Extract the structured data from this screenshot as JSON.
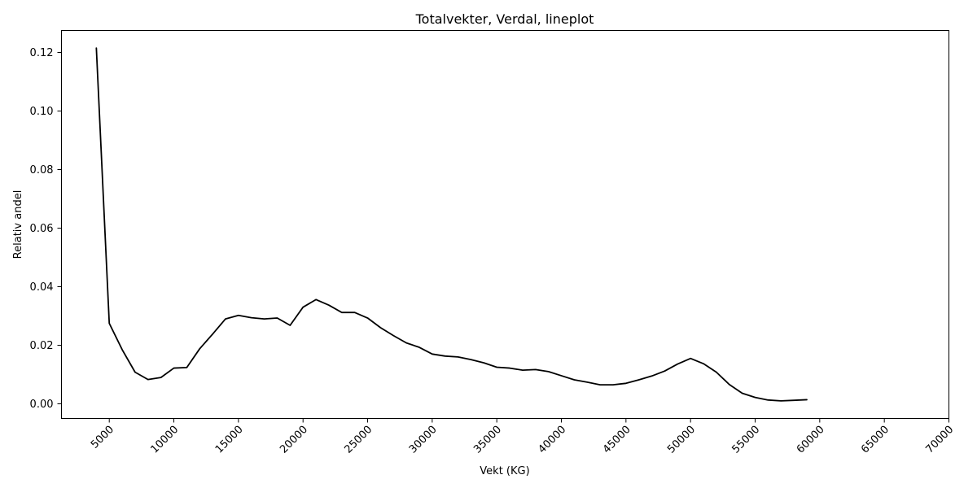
{
  "chart_data": {
    "type": "line",
    "title": "Totalvekter, Verdal, lineplot",
    "xlabel": "Vekt (KG)",
    "ylabel": "Relativ andel",
    "xlim": [
      1300,
      70000
    ],
    "ylim": [
      -0.005,
      0.1275
    ],
    "xticks": [
      "5000",
      "10000",
      "15000",
      "20000",
      "25000",
      "30000",
      "35000",
      "40000",
      "45000",
      "50000",
      "55000",
      "60000",
      "65000",
      "70000"
    ],
    "yticks": [
      "0.00",
      "0.02",
      "0.04",
      "0.06",
      "0.08",
      "0.10",
      "0.12"
    ],
    "grid": false,
    "line_color": "#000000",
    "series": [
      {
        "x": [
          4000,
          5000,
          6000,
          7000,
          8000,
          9000,
          10000,
          11000,
          12000,
          13000,
          14000,
          15000,
          16000,
          17000,
          18000,
          19000,
          20000,
          21000,
          22000,
          23000,
          24000,
          25000,
          26000,
          27000,
          28000,
          29000,
          30000,
          31000,
          32000,
          33000,
          34000,
          35000,
          36000,
          37000,
          38000,
          39000,
          40000,
          41000,
          42000,
          43000,
          44000,
          45000,
          46000,
          47000,
          48000,
          49000,
          50000,
          51000,
          52000,
          53000,
          54000,
          55000,
          56000,
          57000,
          58000,
          59000
        ],
        "values": [
          0.1215,
          0.0275,
          0.0185,
          0.0108,
          0.0083,
          0.009,
          0.0122,
          0.0124,
          0.0188,
          0.0238,
          0.029,
          0.0302,
          0.0294,
          0.029,
          0.0293,
          0.0268,
          0.033,
          0.0356,
          0.0337,
          0.0312,
          0.0312,
          0.0293,
          0.026,
          0.0233,
          0.0208,
          0.0193,
          0.017,
          0.0163,
          0.016,
          0.0151,
          0.014,
          0.0125,
          0.0122,
          0.0115,
          0.0117,
          0.011,
          0.0096,
          0.0082,
          0.0074,
          0.0065,
          0.0065,
          0.007,
          0.0082,
          0.0095,
          0.0112,
          0.0136,
          0.0155,
          0.0137,
          0.0108,
          0.0066,
          0.0036,
          0.0022,
          0.0013,
          0.001,
          0.0012,
          0.0014
        ]
      }
    ]
  }
}
